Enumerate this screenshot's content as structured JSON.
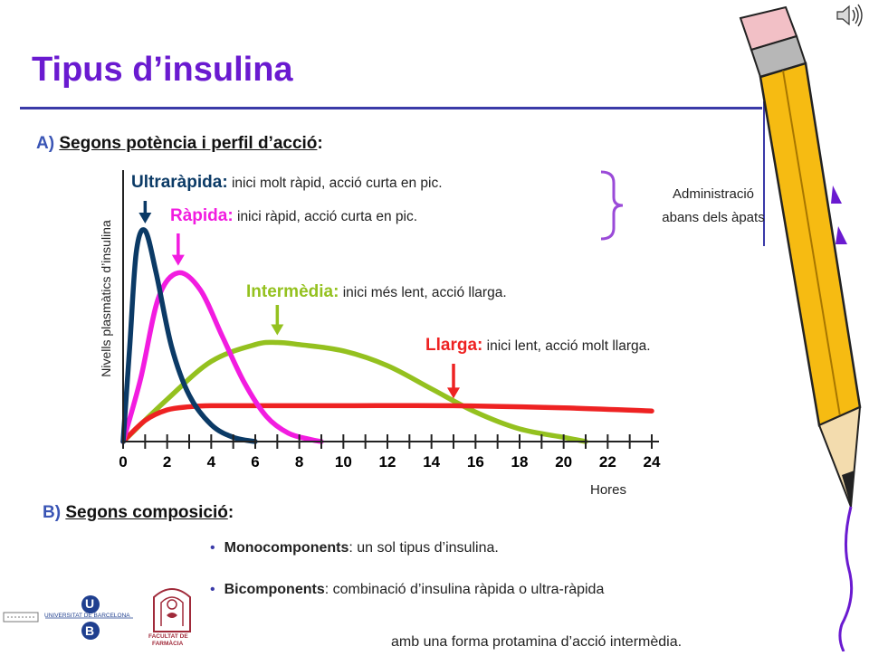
{
  "title": "Tipus d’insulina",
  "sectionA": {
    "letter": "A)",
    "text": "Segons potència i perfil d’acció",
    "colon": ":"
  },
  "sectionB": {
    "letter": "B)",
    "text": "Segons composició",
    "colon": ":"
  },
  "chart_data": {
    "type": "line",
    "xlabel": "Hores",
    "ylabel": "Nivells plasmàtics d’insulina",
    "x_ticks": [
      0,
      2,
      4,
      6,
      8,
      10,
      12,
      14,
      16,
      18,
      20,
      22,
      24
    ],
    "xlim": [
      0,
      24
    ],
    "ylim": [
      0,
      1
    ],
    "series": [
      {
        "name": "Ultraràpida",
        "color": "#0b3a66",
        "x": [
          0,
          0.3,
          0.6,
          1.0,
          1.5,
          2.2,
          3.0,
          4.0,
          5.0,
          6.0
        ],
        "y": [
          0,
          0.45,
          0.9,
          1.0,
          0.8,
          0.45,
          0.22,
          0.08,
          0.02,
          0.0
        ]
      },
      {
        "name": "Ràpida",
        "color": "#f21ce0",
        "x": [
          0,
          0.8,
          1.6,
          2.5,
          3.5,
          4.5,
          5.5,
          6.5,
          7.5,
          8.5,
          9.0
        ],
        "y": [
          0,
          0.3,
          0.68,
          0.8,
          0.72,
          0.5,
          0.28,
          0.12,
          0.04,
          0.01,
          0.0
        ]
      },
      {
        "name": "Intermèdia",
        "color": "#94c11f",
        "x": [
          0,
          2,
          4,
          6,
          7,
          8,
          10,
          12,
          14,
          16,
          18,
          20,
          21
        ],
        "y": [
          0,
          0.2,
          0.38,
          0.46,
          0.47,
          0.46,
          0.43,
          0.36,
          0.25,
          0.14,
          0.06,
          0.02,
          0.0
        ]
      },
      {
        "name": "Llarga",
        "color": "#ee2222",
        "x": [
          0,
          1,
          2,
          3,
          4,
          6,
          10,
          15,
          20,
          24
        ],
        "y": [
          0,
          0.1,
          0.15,
          0.165,
          0.17,
          0.17,
          0.17,
          0.17,
          0.16,
          0.145
        ]
      }
    ],
    "arrows": [
      {
        "series": "Ultraràpida",
        "x": 1.0,
        "color": "#0b3a66"
      },
      {
        "series": "Ràpida",
        "x": 2.5,
        "color": "#f21ce0"
      },
      {
        "series": "Intermèdia",
        "x": 7.0,
        "color": "#94c11f"
      },
      {
        "series": "Llarga",
        "x": 15.0,
        "color": "#ee2222"
      }
    ]
  },
  "types": [
    {
      "name": "Ultraràpida",
      "colon": ":",
      "desc": " inici molt ràpid, acció curta en pic.",
      "color": "#0b3a66"
    },
    {
      "name": "Ràpida",
      "colon": ":",
      "desc": " inici ràpid, acció curta en pic.",
      "color": "#f21ce0"
    },
    {
      "name": "Intermèdia",
      "colon": ":",
      "desc": " inici més lent, acció llarga.",
      "color": "#94c11f"
    },
    {
      "name": "Llarga",
      "colon": ":",
      "desc": " inici lent, acció molt llarga.",
      "color": "#ee2222"
    }
  ],
  "admin": {
    "line1": "Administració",
    "line2": "abans dels àpats"
  },
  "bullets": [
    {
      "bold": "Monocomponents",
      "rest": ": un sol tipus d’insulina."
    },
    {
      "bold": "Bicomponents",
      "rest": ": combinació d’insulina ràpida o ultra-ràpida"
    }
  ],
  "bullet_continuation": "amb una forma protamina d’acció intermèdia.",
  "logos": {
    "ub_text": "UNIVERSITAT DE BARCELONA",
    "ub_letters": [
      "U",
      "B"
    ],
    "faculty_line1": "FACULTAT DE",
    "faculty_line2": "FARMÀCIA"
  },
  "icons": {
    "speaker": "speaker-icon",
    "pencil": "pencil-icon"
  },
  "colors": {
    "title": "#6a1ad0",
    "accent": "#3a3aa8",
    "brace": "#9a4ad8"
  }
}
